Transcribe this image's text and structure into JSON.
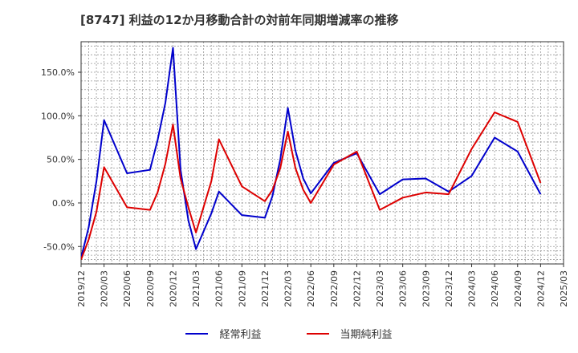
{
  "chart_data": {
    "type": "line",
    "title": "[8747]  利益の12か月移動合計の対前年同期増減率の推移",
    "xlabel": "",
    "ylabel": "",
    "ylim": [
      -70,
      185
    ],
    "yticks": [
      -50,
      0,
      50,
      100,
      150
    ],
    "ytick_labels": [
      "-50.0%",
      "0.0%",
      "50.0%",
      "100.0%",
      "150.0%"
    ],
    "grid": true,
    "legend_position": "bottom-center",
    "x_labels": [
      "2019/12",
      "2020/03",
      "2020/06",
      "2020/09",
      "2020/12",
      "2021/03",
      "2021/06",
      "2021/09",
      "2021/12",
      "2022/03",
      "2022/06",
      "2022/09",
      "2022/12",
      "2023/03",
      "2023/06",
      "2023/09",
      "2023/12",
      "2024/03",
      "2024/06",
      "2024/09",
      "2024/12",
      "2025/03"
    ],
    "series": [
      {
        "name": "経常利益",
        "color": "#0000cc",
        "points": [
          {
            "q": 0,
            "v": -63
          },
          {
            "q": 0.33,
            "v": -28
          },
          {
            "q": 0.67,
            "v": 25
          },
          {
            "q": 1,
            "v": 95
          },
          {
            "q": 2,
            "v": 34
          },
          {
            "q": 3,
            "v": 38
          },
          {
            "q": 3.33,
            "v": 72
          },
          {
            "q": 3.67,
            "v": 115
          },
          {
            "q": 4,
            "v": 178
          },
          {
            "q": 4.33,
            "v": 38
          },
          {
            "q": 4.67,
            "v": -20
          },
          {
            "q": 5,
            "v": -53
          },
          {
            "q": 5.67,
            "v": -12
          },
          {
            "q": 6,
            "v": 13
          },
          {
            "q": 7,
            "v": -14
          },
          {
            "q": 8,
            "v": -17
          },
          {
            "q": 8.33,
            "v": 8
          },
          {
            "q": 8.67,
            "v": 50
          },
          {
            "q": 9,
            "v": 109
          },
          {
            "q": 9.33,
            "v": 60
          },
          {
            "q": 9.67,
            "v": 28
          },
          {
            "q": 10,
            "v": 11
          },
          {
            "q": 11,
            "v": 46
          },
          {
            "q": 12,
            "v": 57
          },
          {
            "q": 13,
            "v": 10
          },
          {
            "q": 14,
            "v": 27
          },
          {
            "q": 15,
            "v": 28
          },
          {
            "q": 16,
            "v": 13
          },
          {
            "q": 17,
            "v": 31
          },
          {
            "q": 18,
            "v": 75
          },
          {
            "q": 19,
            "v": 59
          },
          {
            "q": 20,
            "v": 10
          }
        ]
      },
      {
        "name": "当期純利益",
        "color": "#dd0000",
        "points": [
          {
            "q": 0,
            "v": -65
          },
          {
            "q": 0.33,
            "v": -42
          },
          {
            "q": 0.67,
            "v": -10
          },
          {
            "q": 1,
            "v": 41
          },
          {
            "q": 2,
            "v": -5
          },
          {
            "q": 3,
            "v": -8
          },
          {
            "q": 3.33,
            "v": 12
          },
          {
            "q": 3.67,
            "v": 45
          },
          {
            "q": 4,
            "v": 90
          },
          {
            "q": 4.33,
            "v": 28
          },
          {
            "q": 4.67,
            "v": -5
          },
          {
            "q": 5,
            "v": -34
          },
          {
            "q": 5.67,
            "v": 25
          },
          {
            "q": 6,
            "v": 73
          },
          {
            "q": 7,
            "v": 19
          },
          {
            "q": 8,
            "v": 2
          },
          {
            "q": 8.33,
            "v": 15
          },
          {
            "q": 8.67,
            "v": 40
          },
          {
            "q": 9,
            "v": 82
          },
          {
            "q": 9.33,
            "v": 40
          },
          {
            "q": 9.67,
            "v": 15
          },
          {
            "q": 10,
            "v": 0
          },
          {
            "q": 11,
            "v": 44
          },
          {
            "q": 12,
            "v": 59
          },
          {
            "q": 13,
            "v": -8
          },
          {
            "q": 14,
            "v": 6
          },
          {
            "q": 15,
            "v": 12
          },
          {
            "q": 16,
            "v": 10
          },
          {
            "q": 17,
            "v": 62
          },
          {
            "q": 18,
            "v": 104
          },
          {
            "q": 19,
            "v": 93
          },
          {
            "q": 20,
            "v": 23
          }
        ]
      }
    ]
  }
}
